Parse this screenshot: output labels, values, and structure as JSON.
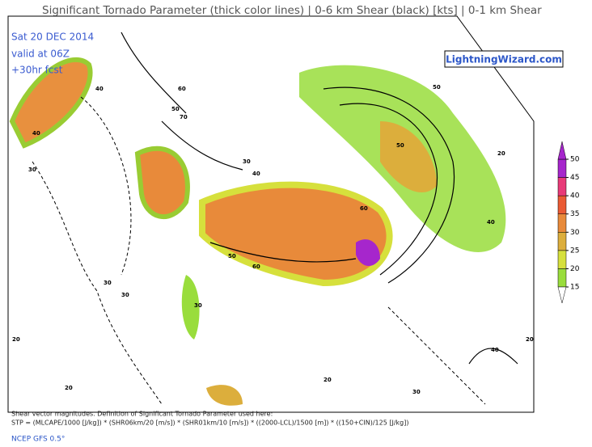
{
  "header": {
    "title": "Significant Tornado Parameter (thick color lines) | 0-6 km Shear (black) [kts] | 0-1 km Shear",
    "date": "Sat 20 DEC 2014",
    "valid": "valid at 06Z",
    "forecast": "+30hr fcst",
    "brand": "LightningWizard.com"
  },
  "colorbar": {
    "ticks": [
      15,
      20,
      25,
      30,
      35,
      40,
      45,
      50
    ],
    "colors": [
      "#99dd3c",
      "#d6e03c",
      "#dcae3c",
      "#e88a3a",
      "#ea5a34",
      "#e83a78",
      "#a626cc"
    ]
  },
  "contour_labels": [
    "30",
    "40",
    "50",
    "60",
    "70",
    "40",
    "30",
    "60",
    "50",
    "60",
    "30",
    "50",
    "40",
    "20",
    "30",
    "20",
    "20",
    "30",
    "40",
    "50",
    "20",
    "20",
    "30",
    "40"
  ],
  "footer": {
    "note": "Shear vector magnitudes. Definition of Significant Tornado Parameter used here:",
    "formula": "STP = (MLCAPE/1000 [J/kg]) * (SHR06km/20 [m/s]) * (SHR01km/10 [m/s]) * ((2000-LCL)/1500 [m]) * ((150+CIN)/125 [J/kg])",
    "source": "NCEP GFS 0.5°"
  }
}
